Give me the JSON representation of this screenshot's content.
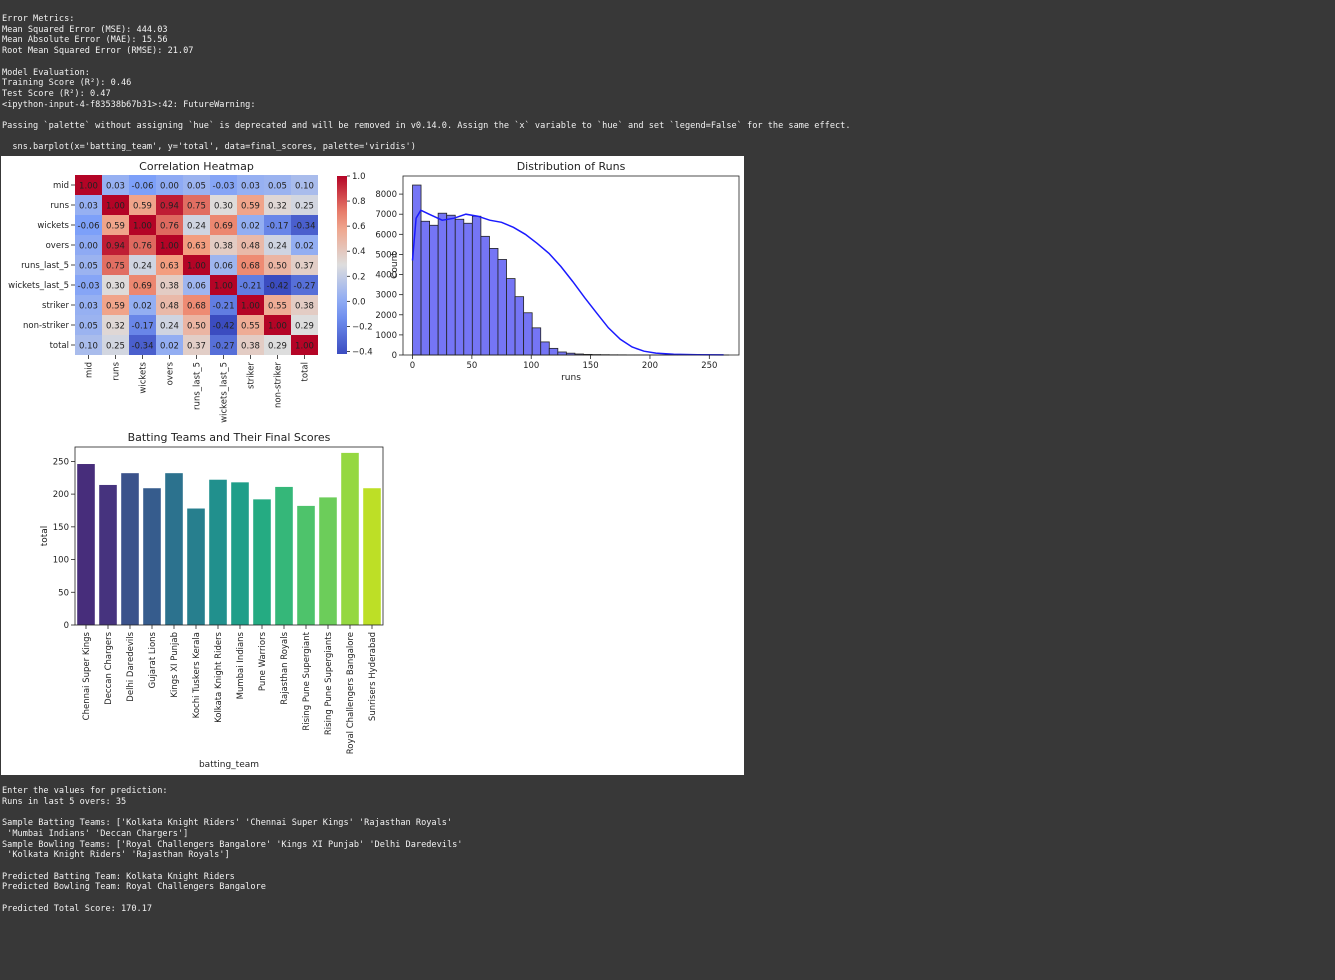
{
  "top_log": {
    "lines": [
      "Error Metrics:",
      "Mean Squared Error (MSE): 444.03",
      "Mean Absolute Error (MAE): 15.56",
      "Root Mean Squared Error (RMSE): 21.07",
      "",
      "Model Evaluation:",
      "Training Score (R²): 0.46",
      "Test Score (R²): 0.47",
      "<ipython-input-4-f83538b67b31>:42: FutureWarning:",
      "",
      "Passing `palette` without assigning `hue` is deprecated and will be removed in v0.14.0. Assign the `x` variable to `hue` and set `legend=False` for the same effect.",
      "",
      "  sns.barplot(x='batting_team', y='total', data=final_scores, palette='viridis')"
    ]
  },
  "bottom_log": {
    "lines": [
      "Enter the values for prediction:",
      "Runs in last 5 overs: 35",
      "",
      "Sample Batting Teams: ['Kolkata Knight Riders' 'Chennai Super Kings' 'Rajasthan Royals'",
      " 'Mumbai Indians' 'Deccan Chargers']",
      "Sample Bowling Teams: ['Royal Challengers Bangalore' 'Kings XI Punjab' 'Delhi Daredevils'",
      " 'Kolkata Knight Riders' 'Rajasthan Royals']",
      "",
      "Predicted Batting Team: Kolkata Knight Riders",
      "Predicted Bowling Team: Royal Challengers Bangalore",
      "",
      "Predicted Total Score: 170.17"
    ]
  },
  "chart_data": [
    {
      "type": "heatmap",
      "title": "Correlation Heatmap",
      "labels": [
        "mid",
        "runs",
        "wickets",
        "overs",
        "runs_last_5",
        "wickets_last_5",
        "striker",
        "non-striker",
        "total"
      ],
      "values": [
        [
          1.0,
          0.03,
          -0.06,
          0.0,
          0.05,
          -0.03,
          0.03,
          0.05,
          0.1
        ],
        [
          0.03,
          1.0,
          0.59,
          0.94,
          0.75,
          0.3,
          0.59,
          0.32,
          0.25
        ],
        [
          -0.06,
          0.59,
          1.0,
          0.76,
          0.24,
          0.69,
          0.02,
          -0.17,
          -0.34
        ],
        [
          0.0,
          0.94,
          0.76,
          1.0,
          0.63,
          0.38,
          0.48,
          0.24,
          0.02
        ],
        [
          0.05,
          0.75,
          0.24,
          0.63,
          1.0,
          0.06,
          0.68,
          0.5,
          0.37
        ],
        [
          -0.03,
          0.3,
          0.69,
          0.38,
          0.06,
          1.0,
          -0.21,
          -0.42,
          -0.27
        ],
        [
          0.03,
          0.59,
          0.02,
          0.48,
          0.68,
          -0.21,
          1.0,
          0.55,
          0.38
        ],
        [
          0.05,
          0.32,
          -0.17,
          0.24,
          0.5,
          -0.42,
          0.55,
          1.0,
          0.29
        ],
        [
          0.1,
          0.25,
          -0.34,
          0.02,
          0.37,
          -0.27,
          0.38,
          0.29,
          1.0
        ]
      ],
      "colorbar_ticks": [
        1.0,
        0.8,
        0.6,
        0.4,
        0.2,
        0.0,
        -0.2,
        -0.4
      ],
      "colorbar_range": [
        -0.42,
        1.0
      ],
      "colormap": "coolwarm"
    },
    {
      "type": "histogram",
      "title": "Distribution of Runs",
      "xlabel": "runs",
      "ylabel": "Count",
      "xlim": [
        -8,
        275
      ],
      "ylim": [
        0,
        8900
      ],
      "xticks": [
        0,
        50,
        100,
        150,
        200,
        250
      ],
      "yticks": [
        0,
        1000,
        2000,
        3000,
        4000,
        5000,
        6000,
        7000,
        8000
      ],
      "bin_width": 7.2,
      "bin_start": 0,
      "counts": [
        8450,
        6650,
        6450,
        7050,
        6950,
        6750,
        6550,
        6900,
        5900,
        5300,
        4750,
        3800,
        2900,
        2100,
        1350,
        650,
        330,
        150,
        90,
        50,
        30,
        20,
        15,
        10,
        8,
        5,
        5,
        5,
        3,
        3,
        2,
        2,
        2,
        1,
        1,
        1,
        1
      ],
      "kde": [
        [
          0,
          4700
        ],
        [
          3,
          6800
        ],
        [
          7,
          7200
        ],
        [
          14,
          7000
        ],
        [
          25,
          6700
        ],
        [
          35,
          6800
        ],
        [
          45,
          7000
        ],
        [
          55,
          6900
        ],
        [
          65,
          6700
        ],
        [
          75,
          6600
        ],
        [
          85,
          6350
        ],
        [
          95,
          6000
        ],
        [
          105,
          5550
        ],
        [
          115,
          5050
        ],
        [
          125,
          4400
        ],
        [
          135,
          3650
        ],
        [
          145,
          2850
        ],
        [
          155,
          2100
        ],
        [
          165,
          1350
        ],
        [
          175,
          780
        ],
        [
          185,
          400
        ],
        [
          195,
          190
        ],
        [
          205,
          95
        ],
        [
          220,
          40
        ],
        [
          240,
          15
        ],
        [
          262,
          5
        ]
      ],
      "bar_color": "#7575f5",
      "line_color": "#1a1aff"
    },
    {
      "type": "bar",
      "title": "Batting Teams and Their Final Scores",
      "xlabel": "batting_team",
      "ylabel": "total",
      "ylim": [
        0,
        272
      ],
      "yticks": [
        0,
        50,
        100,
        150,
        200,
        250
      ],
      "categories": [
        "Chennai Super Kings",
        "Deccan Chargers",
        "Delhi Daredevils",
        "Gujarat Lions",
        "Kings XI Punjab",
        "Kochi Tuskers Kerala",
        "Kolkata Knight Riders",
        "Mumbai Indians",
        "Pune Warriors",
        "Rajasthan Royals",
        "Rising Pune Supergiant",
        "Rising Pune Supergiants",
        "Royal Challengers Bangalore",
        "Sunrisers Hyderabad"
      ],
      "values": [
        246,
        214,
        232,
        209,
        232,
        178,
        222,
        218,
        192,
        211,
        182,
        195,
        263,
        209
      ],
      "colors": [
        "#472d7b",
        "#46337e",
        "#3b528b",
        "#365c8d",
        "#2c728e",
        "#277f8e",
        "#21908d",
        "#1f9e89",
        "#25ab82",
        "#35b779",
        "#4ec36b",
        "#6ccd5a",
        "#95d840",
        "#bddf26"
      ]
    }
  ]
}
